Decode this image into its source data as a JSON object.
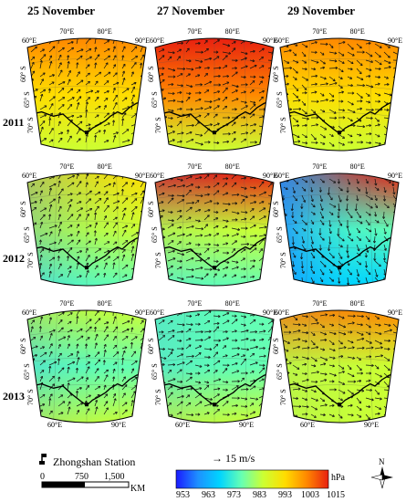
{
  "columns": [
    "25 November",
    "27 November",
    "29 November"
  ],
  "rows": [
    "2011",
    "2012",
    "2013"
  ],
  "lon_ticks": [
    "60°E",
    "70°E",
    "80°E",
    "90°E"
  ],
  "lat_ticks": [
    "60° S",
    "65° S",
    "70° S"
  ],
  "bottom_lon_ticks": [
    "60°E",
    "90°E"
  ],
  "station": {
    "label": "Zhongshan Station",
    "marker_icon": "station-flag-icon"
  },
  "scale_bar": {
    "ticks": [
      "0",
      "750",
      "1,500"
    ],
    "unit": "KM"
  },
  "wind_reference": {
    "label": "→ 15 m/s"
  },
  "colorbar": {
    "unit": "hPa",
    "ticks": [
      "953",
      "963",
      "973",
      "983",
      "993",
      "1003",
      "1015"
    ],
    "colors": [
      "#1a1aff",
      "#1e90ff",
      "#00d4ff",
      "#66ffb3",
      "#ccff33",
      "#ffdd00",
      "#ff8800",
      "#e82010"
    ]
  },
  "north_arrow": {
    "label": "N"
  }
}
